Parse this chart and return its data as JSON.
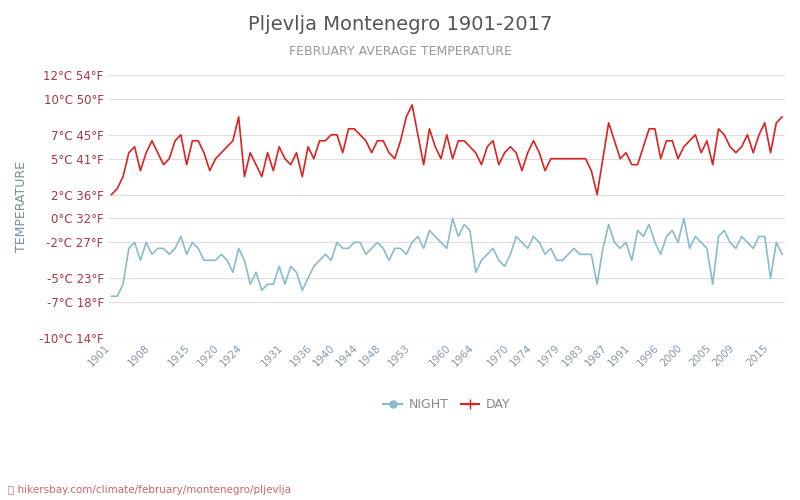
{
  "title": "Pljevlja Montenegro 1901-2017",
  "subtitle": "FEBRUARY AVERAGE TEMPERATURE",
  "ylabel": "TEMPERATURE",
  "xlabel_url": "hikersbay.com/climate/february/montenegro/pljevlja",
  "bg_color": "#ffffff",
  "grid_color": "#dddddd",
  "title_color": "#555555",
  "subtitle_color": "#999999",
  "ylabel_color": "#7090a0",
  "tick_color": "#aa3344",
  "line_day_color": "#dd2222",
  "line_night_color": "#88bbcc",
  "years": [
    1901,
    1902,
    1903,
    1904,
    1905,
    1906,
    1907,
    1908,
    1909,
    1910,
    1911,
    1912,
    1913,
    1914,
    1915,
    1916,
    1917,
    1918,
    1919,
    1920,
    1921,
    1922,
    1923,
    1924,
    1925,
    1926,
    1927,
    1928,
    1929,
    1930,
    1931,
    1932,
    1933,
    1934,
    1935,
    1936,
    1937,
    1938,
    1939,
    1940,
    1941,
    1942,
    1943,
    1944,
    1945,
    1946,
    1947,
    1948,
    1949,
    1950,
    1951,
    1952,
    1953,
    1954,
    1955,
    1956,
    1957,
    1958,
    1959,
    1960,
    1961,
    1962,
    1963,
    1964,
    1965,
    1966,
    1967,
    1968,
    1969,
    1970,
    1971,
    1972,
    1973,
    1974,
    1975,
    1976,
    1977,
    1978,
    1979,
    1980,
    1981,
    1982,
    1983,
    1984,
    1985,
    1986,
    1987,
    1988,
    1989,
    1990,
    1991,
    1992,
    1993,
    1994,
    1995,
    1996,
    1997,
    1998,
    1999,
    2000,
    2001,
    2002,
    2003,
    2004,
    2005,
    2006,
    2007,
    2008,
    2009,
    2010,
    2011,
    2012,
    2013,
    2014,
    2015,
    2016,
    2017
  ],
  "day_temps": [
    2.0,
    2.5,
    3.5,
    5.5,
    6.0,
    4.0,
    5.5,
    6.5,
    5.5,
    4.5,
    5.0,
    6.5,
    7.0,
    4.5,
    6.5,
    6.5,
    5.5,
    4.0,
    5.0,
    5.5,
    6.0,
    6.5,
    8.5,
    3.5,
    5.5,
    4.5,
    3.5,
    5.5,
    4.0,
    6.0,
    5.0,
    4.5,
    5.5,
    3.5,
    6.0,
    5.0,
    6.5,
    6.5,
    7.0,
    7.0,
    5.5,
    7.5,
    7.5,
    7.0,
    6.5,
    5.5,
    6.5,
    6.5,
    5.5,
    5.0,
    6.5,
    8.5,
    9.5,
    7.0,
    4.5,
    7.5,
    6.0,
    5.0,
    7.0,
    5.0,
    6.5,
    6.5,
    6.0,
    5.5,
    4.5,
    6.0,
    6.5,
    4.5,
    5.5,
    6.0,
    5.5,
    4.0,
    5.5,
    6.5,
    5.5,
    4.0,
    5.0,
    5.0,
    5.0,
    5.0,
    5.0,
    5.0,
    5.0,
    4.0,
    2.0,
    5.0,
    8.0,
    6.5,
    5.0,
    5.5,
    4.5,
    4.5,
    6.0,
    7.5,
    7.5,
    5.0,
    6.5,
    6.5,
    5.0,
    6.0,
    6.5,
    7.0,
    5.5,
    6.5,
    4.5,
    7.5,
    7.0,
    6.0,
    5.5,
    6.0,
    7.0,
    5.5,
    7.0,
    8.0,
    5.5,
    8.0,
    8.5
  ],
  "night_temps": [
    -6.5,
    -6.5,
    -5.5,
    -2.5,
    -2.0,
    -3.5,
    -2.0,
    -3.0,
    -2.5,
    -2.5,
    -3.0,
    -2.5,
    -1.5,
    -3.0,
    -2.0,
    -2.5,
    -3.5,
    -3.5,
    -3.5,
    -3.0,
    -3.5,
    -4.5,
    -2.5,
    -3.5,
    -5.5,
    -4.5,
    -6.0,
    -5.5,
    -5.5,
    -4.0,
    -5.5,
    -4.0,
    -4.5,
    -6.0,
    -5.0,
    -4.0,
    -3.5,
    -3.0,
    -3.5,
    -2.0,
    -2.5,
    -2.5,
    -2.0,
    -2.0,
    -3.0,
    -2.5,
    -2.0,
    -2.5,
    -3.5,
    -2.5,
    -2.5,
    -3.0,
    -2.0,
    -1.5,
    -2.5,
    -1.0,
    -1.5,
    -2.0,
    -2.5,
    0.0,
    -1.5,
    -0.5,
    -1.0,
    -4.5,
    -3.5,
    -3.0,
    -2.5,
    -3.5,
    -4.0,
    -3.0,
    -1.5,
    -2.0,
    -2.5,
    -1.5,
    -2.0,
    -3.0,
    -2.5,
    -3.5,
    -3.5,
    -3.0,
    -2.5,
    -3.0,
    -3.0,
    -3.0,
    -5.5,
    -2.5,
    -0.5,
    -2.0,
    -2.5,
    -2.0,
    -3.5,
    -1.0,
    -1.5,
    -0.5,
    -2.0,
    -3.0,
    -1.5,
    -1.0,
    -2.0,
    0.0,
    -2.5,
    -1.5,
    -2.0,
    -2.5,
    -5.5,
    -1.5,
    -1.0,
    -2.0,
    -2.5,
    -1.5,
    -2.0,
    -2.5,
    -1.5,
    -1.5,
    -5.0,
    -2.0,
    -3.0
  ],
  "yticks_c": [
    -10,
    -7,
    -5,
    -2,
    0,
    2,
    5,
    7,
    10,
    12
  ],
  "yticks_f": [
    14,
    18,
    23,
    27,
    32,
    36,
    41,
    45,
    50,
    54
  ],
  "xtick_years": [
    1901,
    1908,
    1915,
    1920,
    1924,
    1931,
    1936,
    1940,
    1944,
    1948,
    1953,
    1960,
    1964,
    1970,
    1974,
    1979,
    1983,
    1987,
    1991,
    1996,
    2000,
    2005,
    2009,
    2015
  ],
  "ymin": -10,
  "ymax": 12,
  "legend_night_label": "NIGHT",
  "legend_day_label": "DAY"
}
